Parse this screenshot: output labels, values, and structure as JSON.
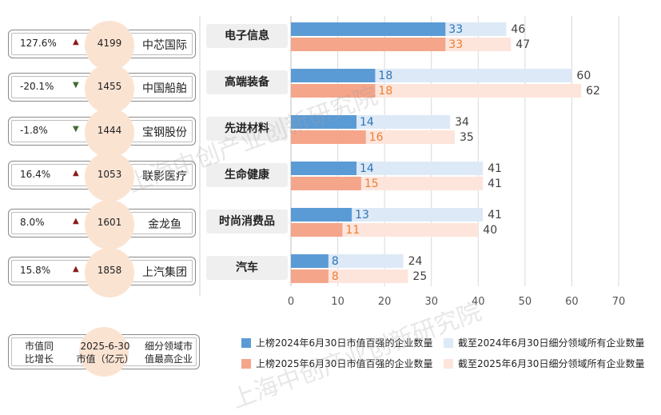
{
  "left_cards": [
    {
      "growth": "127.6%",
      "direction": "up",
      "value": "4199",
      "company": "中芯国际"
    },
    {
      "growth": "-20.1%",
      "direction": "down",
      "value": "1455",
      "company": "中国船舶"
    },
    {
      "growth": "-1.8%",
      "direction": "down",
      "value": "1444",
      "company": "宝钢股份"
    },
    {
      "growth": "16.4%",
      "direction": "up",
      "value": "1053",
      "company": "联影医疗"
    },
    {
      "growth": "8.0%",
      "direction": "up",
      "value": "1601",
      "company": "金龙鱼"
    },
    {
      "growth": "15.8%",
      "direction": "up",
      "value": "1858",
      "company": "上汽集团"
    }
  ],
  "arrow_up": "▲",
  "arrow_down": "▼",
  "footer_labels": {
    "growth": "市值同\n比增长",
    "date_value": "2025-6-30\n市值（亿元）",
    "company": "细分领域市\n值最高企业"
  },
  "watermark": "上海中创产业创新研究院",
  "colors": {
    "top_a": "#5b9bd5",
    "total_a": "#dde9f7",
    "top_b": "#f4a58a",
    "total_b": "#fde5dc",
    "label_a": "#2e75b6",
    "label_b": "#ed7d31",
    "up": "#8b1a1a",
    "down": "#3f6b2f"
  },
  "chart_data": {
    "type": "bar",
    "orientation": "horizontal",
    "categories": [
      "电子信息",
      "高端装备",
      "先进材料",
      "生命健康",
      "时尚消费品",
      "汽车"
    ],
    "series": [
      {
        "name": "上榜2024年6月30日市值百强的企业数量",
        "values": [
          33,
          18,
          14,
          14,
          13,
          8
        ]
      },
      {
        "name": "截至2024年6月30日细分领域所有企业数量",
        "values": [
          46,
          60,
          34,
          41,
          41,
          24
        ]
      },
      {
        "name": "上榜2025年6月30日市值百强的企业数量",
        "values": [
          33,
          18,
          16,
          15,
          11,
          8
        ]
      },
      {
        "name": "截至2025年6月30日细分领域所有企业数量",
        "values": [
          47,
          62,
          35,
          41,
          40,
          25
        ]
      }
    ],
    "xlim": [
      0,
      70
    ],
    "xticks": [
      0,
      10,
      20,
      30,
      40,
      50,
      60,
      70
    ],
    "grid": true,
    "legend_position": "bottom"
  }
}
